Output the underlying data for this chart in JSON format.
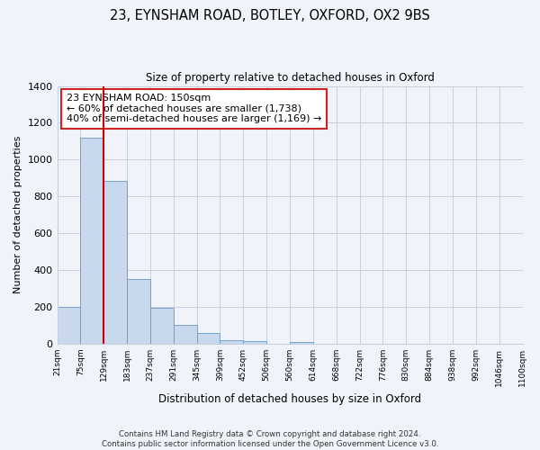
{
  "title": "23, EYNSHAM ROAD, BOTLEY, OXFORD, OX2 9BS",
  "subtitle": "Size of property relative to detached houses in Oxford",
  "xlabel": "Distribution of detached houses by size in Oxford",
  "ylabel": "Number of detached properties",
  "bar_values": [
    200,
    1120,
    885,
    350,
    195,
    100,
    55,
    20,
    15,
    0,
    10,
    0,
    0,
    0,
    0,
    0,
    0,
    0,
    0,
    0
  ],
  "bar_labels": [
    "21sqm",
    "75sqm",
    "129sqm",
    "183sqm",
    "237sqm",
    "291sqm",
    "345sqm",
    "399sqm",
    "452sqm",
    "506sqm",
    "560sqm",
    "614sqm",
    "668sqm",
    "722sqm",
    "776sqm",
    "830sqm",
    "884sqm",
    "938sqm",
    "992sqm",
    "1046sqm",
    "1100sqm"
  ],
  "bar_color": "#c8d9ee",
  "bar_edge_color": "#6699cc",
  "vertical_line_x": 2.5,
  "vertical_line_color": "#cc0000",
  "ylim": [
    0,
    1400
  ],
  "yticks": [
    0,
    200,
    400,
    600,
    800,
    1000,
    1200,
    1400
  ],
  "annotation_title": "23 EYNSHAM ROAD: 150sqm",
  "annotation_line1": "← 60% of detached houses are smaller (1,738)",
  "annotation_line2": "40% of semi-detached houses are larger (1,169) →",
  "footer_line1": "Contains HM Land Registry data © Crown copyright and database right 2024.",
  "footer_line2": "Contains public sector information licensed under the Open Government Licence v3.0.",
  "background_color": "#f0f4fa",
  "plot_bg_color": "#f0f4fa",
  "grid_color": "#c8d0e0"
}
